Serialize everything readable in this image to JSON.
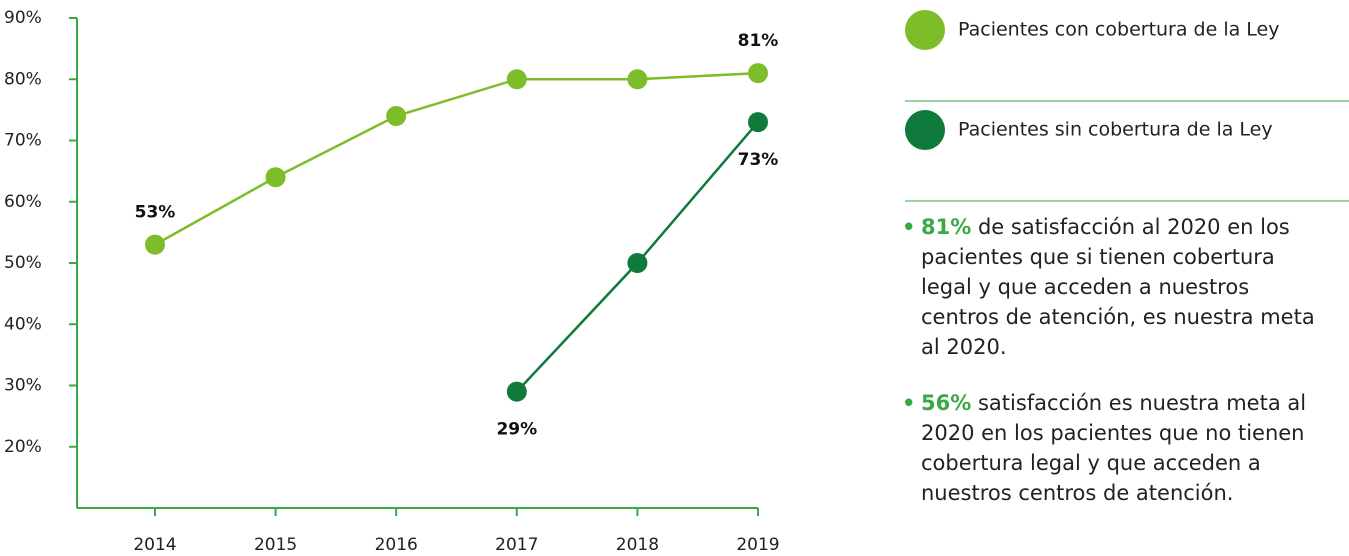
{
  "chart_data": {
    "type": "line",
    "categories": [
      "2014",
      "2015",
      "2016",
      "2017",
      "2018",
      "2019"
    ],
    "series": [
      {
        "name": "Pacientes con cobertura de la Ley",
        "color": "#7dbd2a",
        "values": [
          53,
          64,
          74,
          80,
          80,
          81
        ],
        "value_labels": [
          "53%",
          null,
          null,
          null,
          null,
          "81%"
        ]
      },
      {
        "name": "Pacientes sin cobertura de la Ley",
        "color": "#0f7a3b",
        "values": [
          null,
          null,
          null,
          29,
          50,
          73
        ],
        "value_labels": [
          null,
          null,
          null,
          "29%",
          null,
          "73%"
        ]
      }
    ],
    "ylim": [
      10,
      90
    ],
    "yticks": [
      {
        "value": 20,
        "label": "20%"
      },
      {
        "value": 30,
        "label": "30%"
      },
      {
        "value": 40,
        "label": "40%"
      },
      {
        "value": 50,
        "label": "50%"
      },
      {
        "value": 60,
        "label": "60%"
      },
      {
        "value": 70,
        "label": "70%"
      },
      {
        "value": 80,
        "label": "80%"
      },
      {
        "value": 90,
        "label": "90%"
      }
    ],
    "axis_color": "#3aa845",
    "notes": [
      {
        "highlight": "81%",
        "text": "de satisfacción al 2020 en los pacientes que si tienen cobertura legal y que acceden a nuestros centros de atención, es nuestra meta al 2020."
      },
      {
        "highlight": "56%",
        "text": "satisfacción es nuestra meta al 2020 en los pacientes que no tienen cobertura legal y que acceden a nuestros centros de atención."
      }
    ]
  }
}
